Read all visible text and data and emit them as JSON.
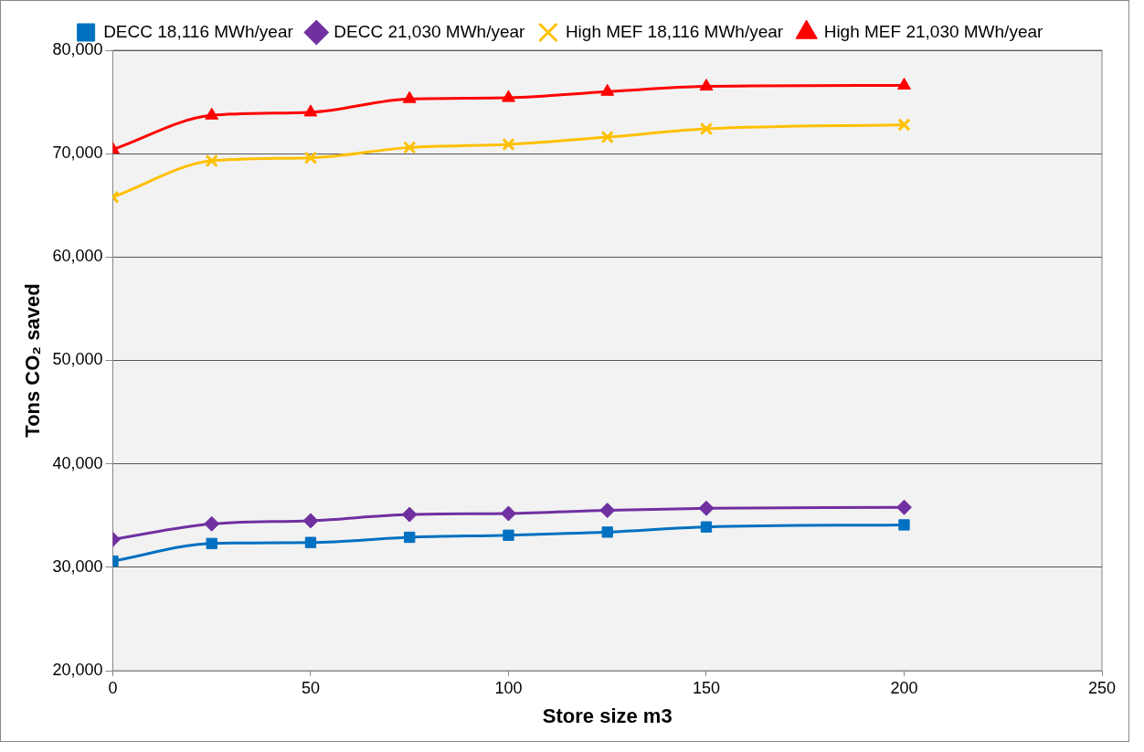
{
  "chart_data": {
    "type": "line",
    "xlabel": "Store size m3",
    "ylabel": "Tons CO₂ saved",
    "x": [
      0,
      25,
      50,
      75,
      100,
      125,
      150,
      200
    ],
    "series": [
      {
        "name": "DECC 18,116 MWh/year",
        "color": "#0070c0",
        "marker": "square",
        "values": [
          30600,
          32300,
          32400,
          32900,
          33100,
          33400,
          33900,
          34100
        ]
      },
      {
        "name": "DECC 21,030 MWh/year",
        "color": "#7030a0",
        "marker": "diamond",
        "values": [
          32700,
          34200,
          34500,
          35100,
          35200,
          35500,
          35700,
          35800
        ]
      },
      {
        "name": "High MEF 18,116 MWh/year",
        "color": "#ffc000",
        "marker": "cross",
        "values": [
          65800,
          69300,
          69600,
          70600,
          70900,
          71600,
          72400,
          72800
        ]
      },
      {
        "name": "High MEF 21,030 MWh/year",
        "color": "#ff0000",
        "marker": "triangle",
        "values": [
          70400,
          73700,
          74000,
          75300,
          75400,
          76000,
          76500,
          76600
        ]
      }
    ],
    "xlim": [
      0,
      250
    ],
    "xticks": [
      0,
      50,
      100,
      150,
      200,
      250
    ],
    "ylim": [
      20000,
      80000
    ],
    "yticks": [
      {
        "value": 20000,
        "label": "20,000"
      },
      {
        "value": 30000,
        "label": "30,000"
      },
      {
        "value": 40000,
        "label": "40,000"
      },
      {
        "value": 50000,
        "label": "50,000"
      },
      {
        "value": 60000,
        "label": "60,000"
      },
      {
        "value": 70000,
        "label": "70,000"
      },
      {
        "value": 80000,
        "label": "80,000"
      }
    ],
    "grid": "y",
    "legend": "top",
    "line_style": "solid"
  }
}
